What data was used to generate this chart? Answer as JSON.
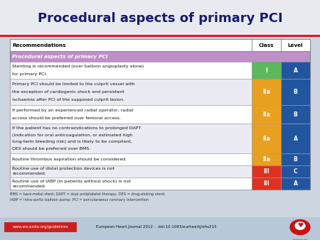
{
  "title": "Procedural aspects of primary PCI",
  "background_color": "#cdd5e0",
  "title_color": "#1a1a6e",
  "title_bg": "#e8eaf0",
  "red_line_color": "#cc2222",
  "header_row": [
    "Recommendations",
    "Class",
    "Level"
  ],
  "subheader": "Procedural aspects of primary PCI",
  "subheader_bg": "#bf8fc8",
  "subheader_text_color": "#ffffff",
  "rows": [
    {
      "text": "Stenting is recommended (over balloon angioplasty alone) for primary PCI.",
      "class_label": "I",
      "level_label": "A",
      "class_color": "#5cb85c",
      "level_color": "#2255a0",
      "row_bg": "#ffffff"
    },
    {
      "text": "Primary PCI should be limited to the culprit vessel with the exception of cardiogenic shock and persistent ischaemia after PCI of the supposed culprit lesion.",
      "class_label": "IIa",
      "level_label": "B",
      "class_color": "#e8a020",
      "level_color": "#2255a0",
      "row_bg": "#ebebf4"
    },
    {
      "text": "If performed by an experienced radial operator, radial access should be preferred over femoral access.",
      "class_label": "IIa",
      "level_label": "B",
      "class_color": "#e8a020",
      "level_color": "#2255a0",
      "row_bg": "#ffffff"
    },
    {
      "text": "If the patient has no contraindications to prolonged DAPT (indication for oral anticoagulation, or estimated high long-term bleeding risk) and is likely to be compliant, DES should be preferred over BMS.",
      "class_label": "IIa",
      "level_label": "A",
      "class_color": "#e8a020",
      "level_color": "#2255a0",
      "row_bg": "#ebebf4"
    },
    {
      "text": "Routine thrombus aspiration should be considered.",
      "class_label": "IIa",
      "level_label": "B",
      "class_color": "#e8a020",
      "level_color": "#2255a0",
      "row_bg": "#ffffff"
    },
    {
      "text": "Routine use of distal protection devices is not recommended.",
      "class_label": "III",
      "level_label": "C",
      "class_color": "#e03020",
      "level_color": "#2255a0",
      "row_bg": "#ebebf4"
    },
    {
      "text": "Routine use of IABP (in patients without shock) is not recommended.",
      "class_label": "III",
      "level_label": "A",
      "class_color": "#e03020",
      "level_color": "#2255a0",
      "row_bg": "#ffffff"
    }
  ],
  "footnote_line1": "BMS = bare-metal stent; DAPT = dual antiplatelet therapy; DES = drug-eluting stent;",
  "footnote_line2": "IABP = intra-aortic balloon pump; PCI = percutaneous coronary intervention",
  "footer_left": "www.escardio.org/guidelines",
  "footer_center": "European Heart Journal 2012 -  doi:10.1093/eurheartj/ehs215",
  "footer_left_bg": "#cc2020",
  "footer_left_text_color": "#ffffff",
  "footer_bg": "#b8c8d8"
}
